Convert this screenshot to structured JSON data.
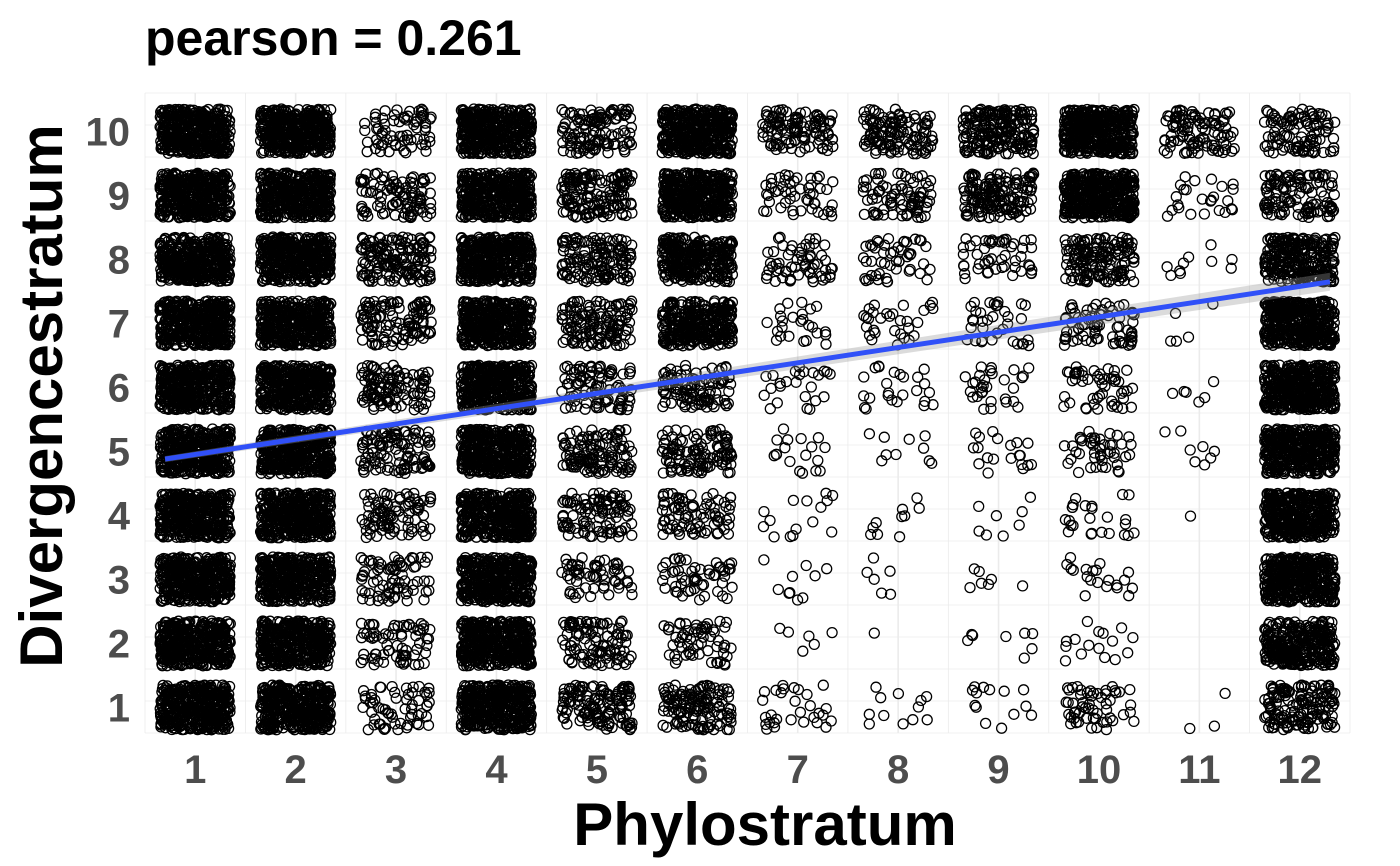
{
  "chart_data": {
    "type": "scatter",
    "title": "pearson = 0.261",
    "xlabel": "Phylostratum",
    "ylabel": "Divergencestratum",
    "x_ticks": [
      "1",
      "2",
      "3",
      "4",
      "5",
      "6",
      "7",
      "8",
      "9",
      "10",
      "11",
      "12"
    ],
    "y_ticks": [
      "1",
      "2",
      "3",
      "4",
      "5",
      "6",
      "7",
      "8",
      "9",
      "10"
    ],
    "xlim": [
      0.5,
      12.5
    ],
    "ylim": [
      0.6,
      10.6
    ],
    "jitter": 0.35,
    "grid": true,
    "point_style": "open-circle",
    "point_color": "#000000",
    "trend_line": {
      "color": "#3050F8",
      "x": [
        0.7,
        12.3
      ],
      "y": [
        4.88,
        7.65
      ]
    },
    "point_counts": [
      [
        400,
        400,
        60,
        400,
        130,
        130,
        30,
        12,
        14,
        55,
        3,
        150
      ],
      [
        400,
        400,
        70,
        400,
        100,
        60,
        6,
        1,
        8,
        16,
        0,
        300
      ],
      [
        400,
        400,
        75,
        400,
        60,
        55,
        10,
        6,
        7,
        20,
        0,
        400
      ],
      [
        400,
        400,
        90,
        400,
        100,
        80,
        15,
        10,
        8,
        25,
        1,
        400
      ],
      [
        400,
        400,
        110,
        400,
        120,
        110,
        18,
        10,
        20,
        45,
        8,
        400
      ],
      [
        400,
        400,
        110,
        400,
        90,
        100,
        25,
        25,
        30,
        50,
        6,
        400
      ],
      [
        400,
        400,
        110,
        400,
        130,
        300,
        25,
        30,
        35,
        70,
        5,
        400
      ],
      [
        400,
        400,
        150,
        400,
        140,
        300,
        60,
        50,
        50,
        150,
        10,
        250
      ],
      [
        400,
        400,
        100,
        400,
        150,
        400,
        50,
        80,
        150,
        400,
        25,
        120
      ],
      [
        400,
        400,
        70,
        400,
        120,
        400,
        110,
        120,
        200,
        400,
        100,
        100
      ]
    ]
  }
}
